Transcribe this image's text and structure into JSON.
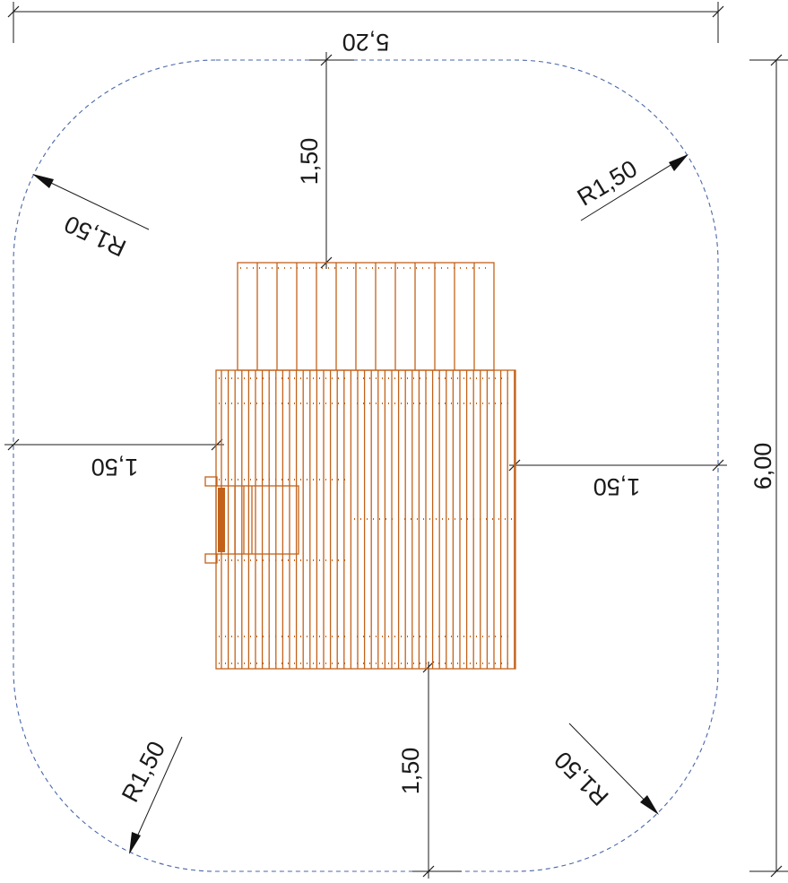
{
  "dimensions": {
    "overall_width": "5,20",
    "overall_depth": "6,00",
    "top_clearance": "1,50",
    "bottom_clearance": "1,50",
    "left_clearance": "1,50",
    "right_clearance": "1,50",
    "radius_top_left": "R1,50",
    "radius_top_right": "R1,50",
    "radius_bottom_left": "R1,50",
    "radius_bottom_right": "R1,50"
  },
  "colors": {
    "equipment": "#c2621a",
    "safety_zone": "#4a67a8",
    "dimension_lines": "#1a1a1a"
  }
}
